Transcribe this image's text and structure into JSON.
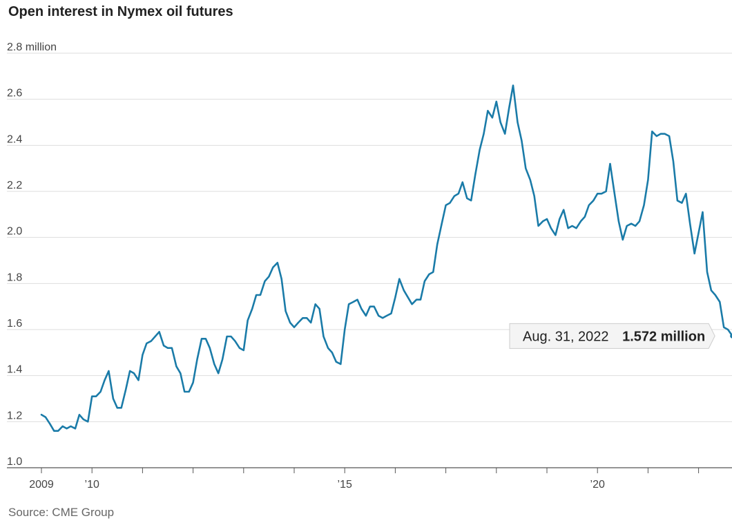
{
  "title": "Open interest in Nymex oil futures",
  "source": "Source: CME Group",
  "colors": {
    "line": "#1a7ba8",
    "grid": "#dddddd",
    "axis": "#555555",
    "callout_bg": "#f4f4f4",
    "callout_border": "#cccccc"
  },
  "callout": {
    "date": "Aug. 31, 2022",
    "value": "1.572 million"
  },
  "chart_data": {
    "type": "line",
    "title": "Open interest in Nymex oil futures",
    "ylabel": "",
    "xlabel": "",
    "ylim": [
      1.0,
      2.8
    ],
    "yticks": [
      1.0,
      1.2,
      1.4,
      1.6,
      1.8,
      2.0,
      2.2,
      2.4,
      2.6,
      2.8
    ],
    "ytick_labels": [
      "1.0",
      "1.2",
      "1.4",
      "1.6",
      "1.8",
      "2.0",
      "2.2",
      "2.4",
      "2.6",
      "2.8 million"
    ],
    "xlim": [
      2009.0,
      2022.67
    ],
    "xticks": [
      2009,
      2010,
      2011,
      2012,
      2013,
      2014,
      2015,
      2016,
      2017,
      2018,
      2019,
      2020,
      2021,
      2022
    ],
    "xtick_labels": [
      {
        "x": 2009,
        "label": "2009"
      },
      {
        "x": 2010,
        "label": "’10"
      },
      {
        "x": 2015,
        "label": "’15"
      },
      {
        "x": 2020,
        "label": "’20"
      }
    ],
    "grid": true,
    "series": [
      {
        "values": [
          [
            2009.0,
            1.23
          ],
          [
            2009.08,
            1.22
          ],
          [
            2009.17,
            1.19
          ],
          [
            2009.25,
            1.16
          ],
          [
            2009.33,
            1.16
          ],
          [
            2009.42,
            1.18
          ],
          [
            2009.5,
            1.17
          ],
          [
            2009.58,
            1.18
          ],
          [
            2009.67,
            1.17
          ],
          [
            2009.75,
            1.23
          ],
          [
            2009.83,
            1.21
          ],
          [
            2009.92,
            1.2
          ],
          [
            2010.0,
            1.31
          ],
          [
            2010.08,
            1.31
          ],
          [
            2010.17,
            1.33
          ],
          [
            2010.25,
            1.38
          ],
          [
            2010.33,
            1.42
          ],
          [
            2010.42,
            1.3
          ],
          [
            2010.5,
            1.26
          ],
          [
            2010.58,
            1.26
          ],
          [
            2010.67,
            1.34
          ],
          [
            2010.75,
            1.42
          ],
          [
            2010.83,
            1.41
          ],
          [
            2010.92,
            1.38
          ],
          [
            2011.0,
            1.49
          ],
          [
            2011.08,
            1.54
          ],
          [
            2011.17,
            1.55
          ],
          [
            2011.25,
            1.57
          ],
          [
            2011.33,
            1.59
          ],
          [
            2011.42,
            1.53
          ],
          [
            2011.5,
            1.52
          ],
          [
            2011.58,
            1.52
          ],
          [
            2011.67,
            1.44
          ],
          [
            2011.75,
            1.41
          ],
          [
            2011.83,
            1.33
          ],
          [
            2011.92,
            1.33
          ],
          [
            2012.0,
            1.37
          ],
          [
            2012.08,
            1.47
          ],
          [
            2012.17,
            1.56
          ],
          [
            2012.25,
            1.56
          ],
          [
            2012.33,
            1.52
          ],
          [
            2012.42,
            1.45
          ],
          [
            2012.5,
            1.41
          ],
          [
            2012.58,
            1.47
          ],
          [
            2012.67,
            1.57
          ],
          [
            2012.75,
            1.57
          ],
          [
            2012.83,
            1.55
          ],
          [
            2012.92,
            1.52
          ],
          [
            2013.0,
            1.51
          ],
          [
            2013.08,
            1.64
          ],
          [
            2013.17,
            1.69
          ],
          [
            2013.25,
            1.75
          ],
          [
            2013.33,
            1.75
          ],
          [
            2013.42,
            1.81
          ],
          [
            2013.5,
            1.83
          ],
          [
            2013.58,
            1.87
          ],
          [
            2013.67,
            1.89
          ],
          [
            2013.75,
            1.82
          ],
          [
            2013.83,
            1.68
          ],
          [
            2013.92,
            1.63
          ],
          [
            2014.0,
            1.61
          ],
          [
            2014.08,
            1.63
          ],
          [
            2014.17,
            1.65
          ],
          [
            2014.25,
            1.65
          ],
          [
            2014.33,
            1.63
          ],
          [
            2014.42,
            1.71
          ],
          [
            2014.5,
            1.69
          ],
          [
            2014.58,
            1.57
          ],
          [
            2014.67,
            1.52
          ],
          [
            2014.75,
            1.5
          ],
          [
            2014.83,
            1.46
          ],
          [
            2014.92,
            1.45
          ],
          [
            2015.0,
            1.6
          ],
          [
            2015.08,
            1.71
          ],
          [
            2015.17,
            1.72
          ],
          [
            2015.25,
            1.73
          ],
          [
            2015.33,
            1.69
          ],
          [
            2015.42,
            1.66
          ],
          [
            2015.5,
            1.7
          ],
          [
            2015.58,
            1.7
          ],
          [
            2015.67,
            1.66
          ],
          [
            2015.75,
            1.65
          ],
          [
            2015.83,
            1.66
          ],
          [
            2015.92,
            1.67
          ],
          [
            2016.0,
            1.74
          ],
          [
            2016.08,
            1.82
          ],
          [
            2016.17,
            1.77
          ],
          [
            2016.25,
            1.74
          ],
          [
            2016.33,
            1.71
          ],
          [
            2016.42,
            1.73
          ],
          [
            2016.5,
            1.73
          ],
          [
            2016.58,
            1.81
          ],
          [
            2016.67,
            1.84
          ],
          [
            2016.75,
            1.85
          ],
          [
            2016.83,
            1.97
          ],
          [
            2016.92,
            2.06
          ],
          [
            2017.0,
            2.14
          ],
          [
            2017.08,
            2.15
          ],
          [
            2017.17,
            2.18
          ],
          [
            2017.25,
            2.19
          ],
          [
            2017.33,
            2.24
          ],
          [
            2017.42,
            2.17
          ],
          [
            2017.5,
            2.16
          ],
          [
            2017.58,
            2.27
          ],
          [
            2017.67,
            2.38
          ],
          [
            2017.75,
            2.45
          ],
          [
            2017.83,
            2.55
          ],
          [
            2017.92,
            2.52
          ],
          [
            2018.0,
            2.59
          ],
          [
            2018.08,
            2.5
          ],
          [
            2018.17,
            2.45
          ],
          [
            2018.25,
            2.56
          ],
          [
            2018.33,
            2.66
          ],
          [
            2018.42,
            2.5
          ],
          [
            2018.5,
            2.42
          ],
          [
            2018.58,
            2.3
          ],
          [
            2018.67,
            2.25
          ],
          [
            2018.75,
            2.18
          ],
          [
            2018.83,
            2.05
          ],
          [
            2018.92,
            2.07
          ],
          [
            2019.0,
            2.08
          ],
          [
            2019.08,
            2.04
          ],
          [
            2019.17,
            2.01
          ],
          [
            2019.25,
            2.08
          ],
          [
            2019.33,
            2.12
          ],
          [
            2019.42,
            2.04
          ],
          [
            2019.5,
            2.05
          ],
          [
            2019.58,
            2.04
          ],
          [
            2019.67,
            2.07
          ],
          [
            2019.75,
            2.09
          ],
          [
            2019.83,
            2.14
          ],
          [
            2019.92,
            2.16
          ],
          [
            2020.0,
            2.19
          ],
          [
            2020.08,
            2.19
          ],
          [
            2020.17,
            2.2
          ],
          [
            2020.25,
            2.32
          ],
          [
            2020.33,
            2.2
          ],
          [
            2020.42,
            2.07
          ],
          [
            2020.5,
            1.99
          ],
          [
            2020.58,
            2.05
          ],
          [
            2020.67,
            2.06
          ],
          [
            2020.75,
            2.05
          ],
          [
            2020.83,
            2.07
          ],
          [
            2020.92,
            2.14
          ],
          [
            2021.0,
            2.25
          ],
          [
            2021.08,
            2.46
          ],
          [
            2021.17,
            2.44
          ],
          [
            2021.25,
            2.45
          ],
          [
            2021.33,
            2.45
          ],
          [
            2021.42,
            2.44
          ],
          [
            2021.5,
            2.33
          ],
          [
            2021.58,
            2.16
          ],
          [
            2021.67,
            2.15
          ],
          [
            2021.75,
            2.19
          ],
          [
            2021.83,
            2.06
          ],
          [
            2021.92,
            1.93
          ],
          [
            2022.0,
            2.02
          ],
          [
            2022.08,
            2.11
          ],
          [
            2022.17,
            1.85
          ],
          [
            2022.25,
            1.77
          ],
          [
            2022.33,
            1.75
          ],
          [
            2022.42,
            1.72
          ],
          [
            2022.5,
            1.61
          ],
          [
            2022.58,
            1.6
          ],
          [
            2022.67,
            1.572
          ]
        ]
      }
    ],
    "annotations": [
      {
        "x": 2022.67,
        "y": 1.572,
        "text": "Aug. 31, 2022 1.572 million"
      }
    ]
  }
}
